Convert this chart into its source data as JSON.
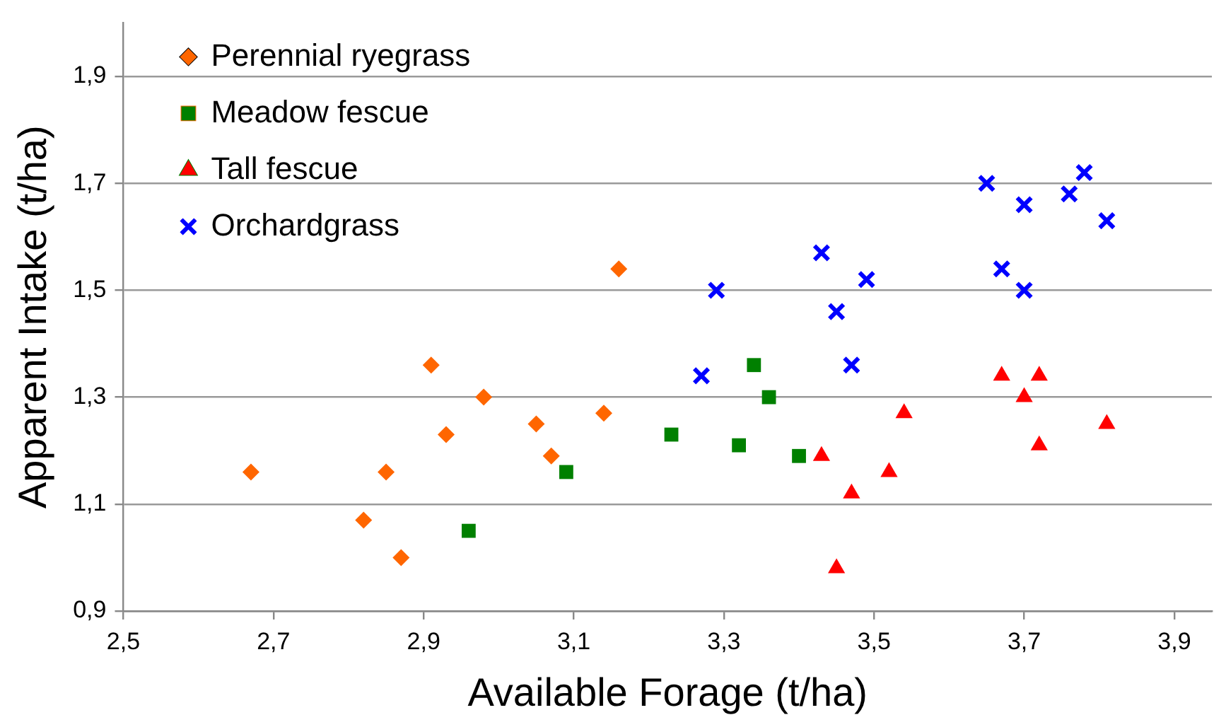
{
  "chart_data": {
    "type": "scatter",
    "xlabel": "Available Forage (t/ha)",
    "ylabel": "Apparent Intake (t/ha)",
    "xlim": [
      2.5,
      3.95
    ],
    "ylim": [
      0.9,
      2.0
    ],
    "xticks": [
      {
        "value": 2.5,
        "label": "2,5"
      },
      {
        "value": 2.7,
        "label": "2,7"
      },
      {
        "value": 2.9,
        "label": "2,9"
      },
      {
        "value": 3.1,
        "label": "3,1"
      },
      {
        "value": 3.3,
        "label": "3,3"
      },
      {
        "value": 3.5,
        "label": "3,5"
      },
      {
        "value": 3.7,
        "label": "3,7"
      },
      {
        "value": 3.9,
        "label": "3,9"
      }
    ],
    "yticks": [
      {
        "value": 0.9,
        "label": "0,9"
      },
      {
        "value": 1.1,
        "label": "1,1"
      },
      {
        "value": 1.3,
        "label": "1,3"
      },
      {
        "value": 1.5,
        "label": "1,5"
      },
      {
        "value": 1.7,
        "label": "1,7"
      },
      {
        "value": 1.9,
        "label": "1,9"
      }
    ],
    "grid": "y",
    "legend": "top left",
    "series": [
      {
        "name": "Perennial ryegrass",
        "color": "#ff6600",
        "marker": "diamond",
        "x": [
          2.67,
          2.82,
          2.85,
          2.87,
          2.91,
          2.93,
          2.98,
          3.05,
          3.07,
          3.14,
          3.16
        ],
        "values": [
          1.16,
          1.07,
          1.16,
          1.0,
          1.36,
          1.23,
          1.3,
          1.25,
          1.19,
          1.27,
          1.54
        ]
      },
      {
        "name": "Meadow fescue",
        "color": "#008000",
        "marker": "square",
        "x": [
          2.96,
          3.09,
          3.23,
          3.32,
          3.34,
          3.36,
          3.4
        ],
        "values": [
          1.05,
          1.16,
          1.23,
          1.21,
          1.36,
          1.3,
          1.19
        ]
      },
      {
        "name": "Tall fescue",
        "color": "#ff0000",
        "marker": "triangle",
        "x": [
          3.43,
          3.45,
          3.47,
          3.52,
          3.54,
          3.67,
          3.7,
          3.72,
          3.72,
          3.81
        ],
        "values": [
          1.19,
          0.98,
          1.12,
          1.16,
          1.27,
          1.34,
          1.3,
          1.34,
          1.21,
          1.25
        ]
      },
      {
        "name": "Orchardgrass",
        "color": "#0000ff",
        "marker": "cross",
        "x": [
          3.27,
          3.29,
          3.43,
          3.45,
          3.47,
          3.49,
          3.65,
          3.67,
          3.7,
          3.7,
          3.76,
          3.78,
          3.81
        ],
        "values": [
          1.34,
          1.5,
          1.57,
          1.46,
          1.36,
          1.52,
          1.7,
          1.54,
          1.5,
          1.66,
          1.68,
          1.72,
          1.63
        ]
      }
    ]
  }
}
